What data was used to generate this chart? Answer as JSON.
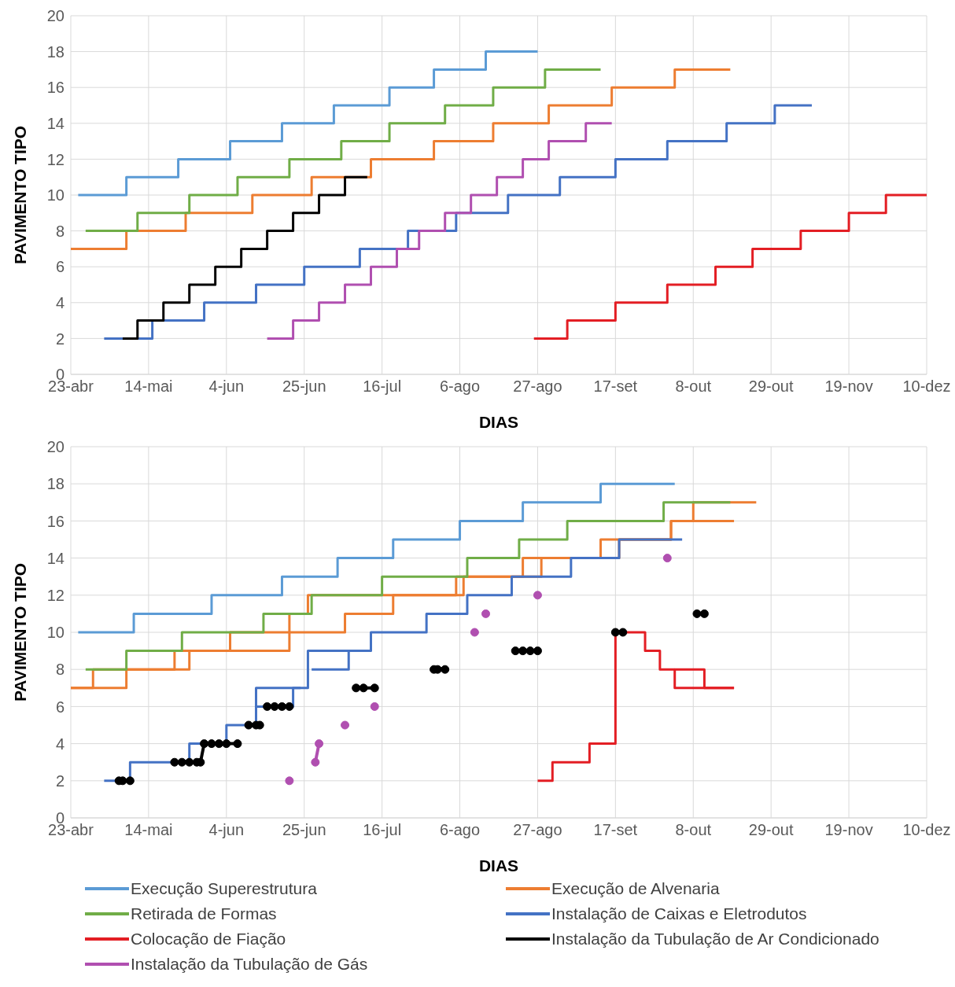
{
  "chart_data": [
    {
      "type": "step",
      "xlabel": "DIAS",
      "ylabel": "PAVIMENTO TIPO",
      "xlim": [
        "--04-23",
        "--12-10"
      ],
      "xticks": [
        {
          "value": "--04-23",
          "label": "23-abr"
        },
        {
          "value": "--05-14",
          "label": "14-mai"
        },
        {
          "value": "--06-04",
          "label": "4-jun"
        },
        {
          "value": "--06-25",
          "label": "25-jun"
        },
        {
          "value": "--07-16",
          "label": "16-jul"
        },
        {
          "value": "--08-06",
          "label": "6-ago"
        },
        {
          "value": "--08-27",
          "label": "27-ago"
        },
        {
          "value": "--09-17",
          "label": "17-set"
        },
        {
          "value": "--10-08",
          "label": "8-out"
        },
        {
          "value": "--10-29",
          "label": "29-out"
        },
        {
          "value": "--11-19",
          "label": "19-nov"
        },
        {
          "value": "--12-10",
          "label": "10-dez"
        }
      ],
      "ylim": [
        0,
        20
      ],
      "yticks": [
        0,
        2,
        4,
        6,
        8,
        10,
        12,
        14,
        16,
        18,
        20
      ],
      "grid": true,
      "series": [
        {
          "color": "#5b9bd5",
          "x": [
            "--04-25",
            "--05-08",
            "--05-22",
            "--06-05",
            "--06-19",
            "--07-03",
            "--07-18",
            "--07-30",
            "--08-13",
            "--08-27"
          ],
          "values": [
            10,
            11,
            12,
            13,
            14,
            15,
            16,
            17,
            18,
            18
          ]
        },
        {
          "color": "#ed7d31",
          "x": [
            "--04-23",
            "--05-08",
            "--05-24",
            "--06-11",
            "--06-27",
            "--07-13",
            "--07-30",
            "--08-15",
            "--08-30",
            "--09-16",
            "--10-03",
            "--10-18"
          ],
          "values": [
            7,
            8,
            9,
            10,
            11,
            12,
            13,
            14,
            15,
            16,
            17,
            17
          ]
        },
        {
          "color": "#70ad47",
          "x": [
            "--04-27",
            "--05-11",
            "--05-25",
            "--06-07",
            "--06-21",
            "--07-05",
            "--07-18",
            "--08-02",
            "--08-15",
            "--08-29",
            "--09-13"
          ],
          "values": [
            8,
            9,
            10,
            11,
            12,
            13,
            14,
            15,
            16,
            17,
            17
          ]
        },
        {
          "color": "#4472c4",
          "x": [
            "--05-02",
            "--05-15",
            "--05-29",
            "--06-12",
            "--06-25",
            "--07-10",
            "--07-23",
            "--08-05",
            "--08-19",
            "--09-02",
            "--09-17",
            "--10-01",
            "--10-17",
            "--10-30",
            "--11-09"
          ],
          "values": [
            2,
            3,
            4,
            5,
            6,
            7,
            8,
            9,
            10,
            11,
            12,
            13,
            14,
            15,
            15
          ]
        },
        {
          "color": "#e31e24",
          "x": [
            "--08-26",
            "--09-04",
            "--09-17",
            "--10-01",
            "--10-14",
            "--10-24",
            "--11-06",
            "--11-19",
            "--11-29",
            "--12-10"
          ],
          "values": [
            2,
            3,
            4,
            5,
            6,
            7,
            8,
            9,
            10,
            10
          ]
        },
        {
          "color": "#000000",
          "x": [
            "--05-07",
            "--05-11",
            "--05-18",
            "--05-25",
            "--06-01",
            "--06-08",
            "--06-15",
            "--06-22",
            "--06-29",
            "--07-06",
            "--07-12"
          ],
          "values": [
            2,
            3,
            4,
            5,
            6,
            7,
            8,
            9,
            10,
            11,
            11
          ]
        },
        {
          "color": "#b04fb0",
          "x": [
            "--06-15",
            "--06-22",
            "--06-29",
            "--07-06",
            "--07-13",
            "--07-20",
            "--07-26",
            "--08-02",
            "--08-09",
            "--08-16",
            "--08-23",
            "--08-30",
            "--09-09",
            "--09-16"
          ],
          "values": [
            2,
            3,
            4,
            5,
            6,
            7,
            8,
            9,
            10,
            11,
            12,
            13,
            14,
            14
          ]
        }
      ]
    },
    {
      "type": "step",
      "xlabel": "DIAS",
      "ylabel": "PAVIMENTO TIPO",
      "xlim": [
        "--04-23",
        "--12-10"
      ],
      "xticks": [
        {
          "value": "--04-23",
          "label": "23-abr"
        },
        {
          "value": "--05-14",
          "label": "14-mai"
        },
        {
          "value": "--06-04",
          "label": "4-jun"
        },
        {
          "value": "--06-25",
          "label": "25-jun"
        },
        {
          "value": "--07-16",
          "label": "16-jul"
        },
        {
          "value": "--08-06",
          "label": "6-ago"
        },
        {
          "value": "--08-27",
          "label": "27-ago"
        },
        {
          "value": "--09-17",
          "label": "17-set"
        },
        {
          "value": "--10-08",
          "label": "8-out"
        },
        {
          "value": "--10-29",
          "label": "29-out"
        },
        {
          "value": "--11-19",
          "label": "19-nov"
        },
        {
          "value": "--12-10",
          "label": "10-dez"
        }
      ],
      "ylim": [
        0,
        20
      ],
      "yticks": [
        0,
        2,
        4,
        6,
        8,
        10,
        12,
        14,
        16,
        18,
        20
      ],
      "grid": true,
      "legend": "bottom",
      "series": [
        {
          "color": "#ed7d31",
          "x": [
            "--04-23",
            "--05-08",
            "--05-25",
            "--06-21",
            "--06-26",
            "--08-07",
            "--08-28",
            "--09-18",
            "--10-02",
            "--10-08",
            "--10-25"
          ],
          "values": [
            7,
            8,
            9,
            11,
            12,
            13,
            14,
            15,
            16,
            17,
            17
          ]
        },
        {
          "name": "Execução Superestrutura",
          "color": "#5b9bd5",
          "x": [
            "--04-25",
            "--05-10",
            "--05-31",
            "--06-19",
            "--07-04",
            "--07-19",
            "--08-06",
            "--08-23",
            "--09-13",
            "--10-03"
          ],
          "values": [
            10,
            11,
            12,
            13,
            14,
            15,
            16,
            17,
            18,
            18
          ]
        },
        {
          "name": "Execução de Alvenaria",
          "color": "#ed7d31",
          "x": [
            "--04-23",
            "--04-29",
            "--05-21",
            "--06-05",
            "--07-06",
            "--07-19",
            "--08-05",
            "--08-23",
            "--09-13",
            "--10-02",
            "--10-19"
          ],
          "values": [
            7,
            8,
            9,
            10,
            11,
            12,
            13,
            14,
            15,
            16,
            16
          ]
        },
        {
          "name": "Retirada de Formas",
          "color": "#70ad47",
          "x": [
            "--04-27",
            "--05-08",
            "--05-23",
            "--06-14",
            "--06-27",
            "--07-16",
            "--08-08",
            "--08-22",
            "--09-04",
            "--09-30",
            "--10-18"
          ],
          "values": [
            8,
            9,
            10,
            11,
            12,
            13,
            14,
            15,
            16,
            17,
            17
          ]
        },
        {
          "name": "Instalação de Caixas e Eletrodutos",
          "color": "#4472c4",
          "x": [
            "--05-02",
            "--05-09",
            "--05-25",
            "--06-04",
            "--06-12",
            "--06-26",
            "--07-13",
            "--07-28",
            "--08-08",
            "--08-20",
            "--09-05",
            "--09-18",
            "--10-05"
          ],
          "values": [
            2,
            3,
            4,
            5,
            7,
            9,
            10,
            11,
            12,
            13,
            14,
            15,
            15
          ]
        },
        {
          "name": "Colocação de Fiação",
          "color": "#e31e24",
          "x": [
            "--08-27",
            "--08-31",
            "--09-10",
            "--09-17",
            "--09-25",
            "--09-29",
            "--10-03",
            "--10-19"
          ],
          "values": [
            2,
            3,
            4,
            10,
            9,
            8,
            7,
            7
          ]
        },
        {
          "name": "Instalação da Tubulação de Ar Condicionado",
          "type": "line",
          "marker": "circle",
          "color": "#000000",
          "x": [
            "--05-06",
            "--05-07",
            "--05-09",
            "--05-15",
            "--05-21",
            "--05-23",
            "--05-25",
            "--05-27",
            "--05-28",
            "--05-29",
            "--05-31",
            "--06-02",
            "--06-04",
            "--06-07",
            "--06-09",
            "--06-10",
            "--06-12",
            "--06-13",
            "--06-14",
            "--06-15",
            "--06-17",
            "--06-19",
            "--06-21",
            "--07-01",
            "--07-09",
            "--07-11",
            "--07-14",
            "--07-20",
            "--07-30",
            "--07-31",
            "--08-02",
            "--08-10",
            "--08-21",
            "--08-23",
            "--08-25",
            "--08-27",
            "--09-05",
            "--09-17",
            "--09-19",
            "--09-25",
            "--10-09",
            "--10-11"
          ],
          "values": [
            2,
            2,
            2,
            null,
            3,
            3,
            3,
            3,
            3,
            4,
            4,
            4,
            4,
            4,
            null,
            5,
            5,
            5,
            null,
            6,
            6,
            6,
            6,
            null,
            7,
            7,
            7,
            null,
            8,
            8,
            8,
            null,
            9,
            9,
            9,
            9,
            null,
            10,
            10,
            null,
            11,
            11
          ]
        },
        {
          "name": "Instalação da Tubulação de Gás",
          "type": "line",
          "marker": "circle",
          "color": "#b04fb0",
          "x": [
            "--06-21",
            "--06-25",
            "--06-28",
            "--06-29",
            "--07-02",
            "--07-06",
            "--07-10",
            "--07-14",
            "--08-01",
            "--08-10",
            "--08-11",
            "--08-13",
            "--08-20",
            "--08-27",
            "--09-15",
            "--10-01"
          ],
          "values": [
            2,
            null,
            3,
            4,
            null,
            5,
            null,
            6,
            null,
            10,
            null,
            11,
            null,
            12,
            null,
            14
          ]
        },
        {
          "color": "#4472c4",
          "x": [
            "--06-12",
            "--06-22",
            "--06-24"
          ],
          "values": [
            6,
            7,
            7
          ]
        },
        {
          "color": "#4472c4",
          "x": [
            "--06-27",
            "--07-07",
            "--07-11"
          ],
          "values": [
            8,
            9,
            9
          ]
        },
        {
          "color": "#e31e24",
          "x": [
            "--10-03",
            "--10-11",
            "--10-19"
          ],
          "values": [
            8,
            7,
            7
          ]
        }
      ]
    }
  ]
}
